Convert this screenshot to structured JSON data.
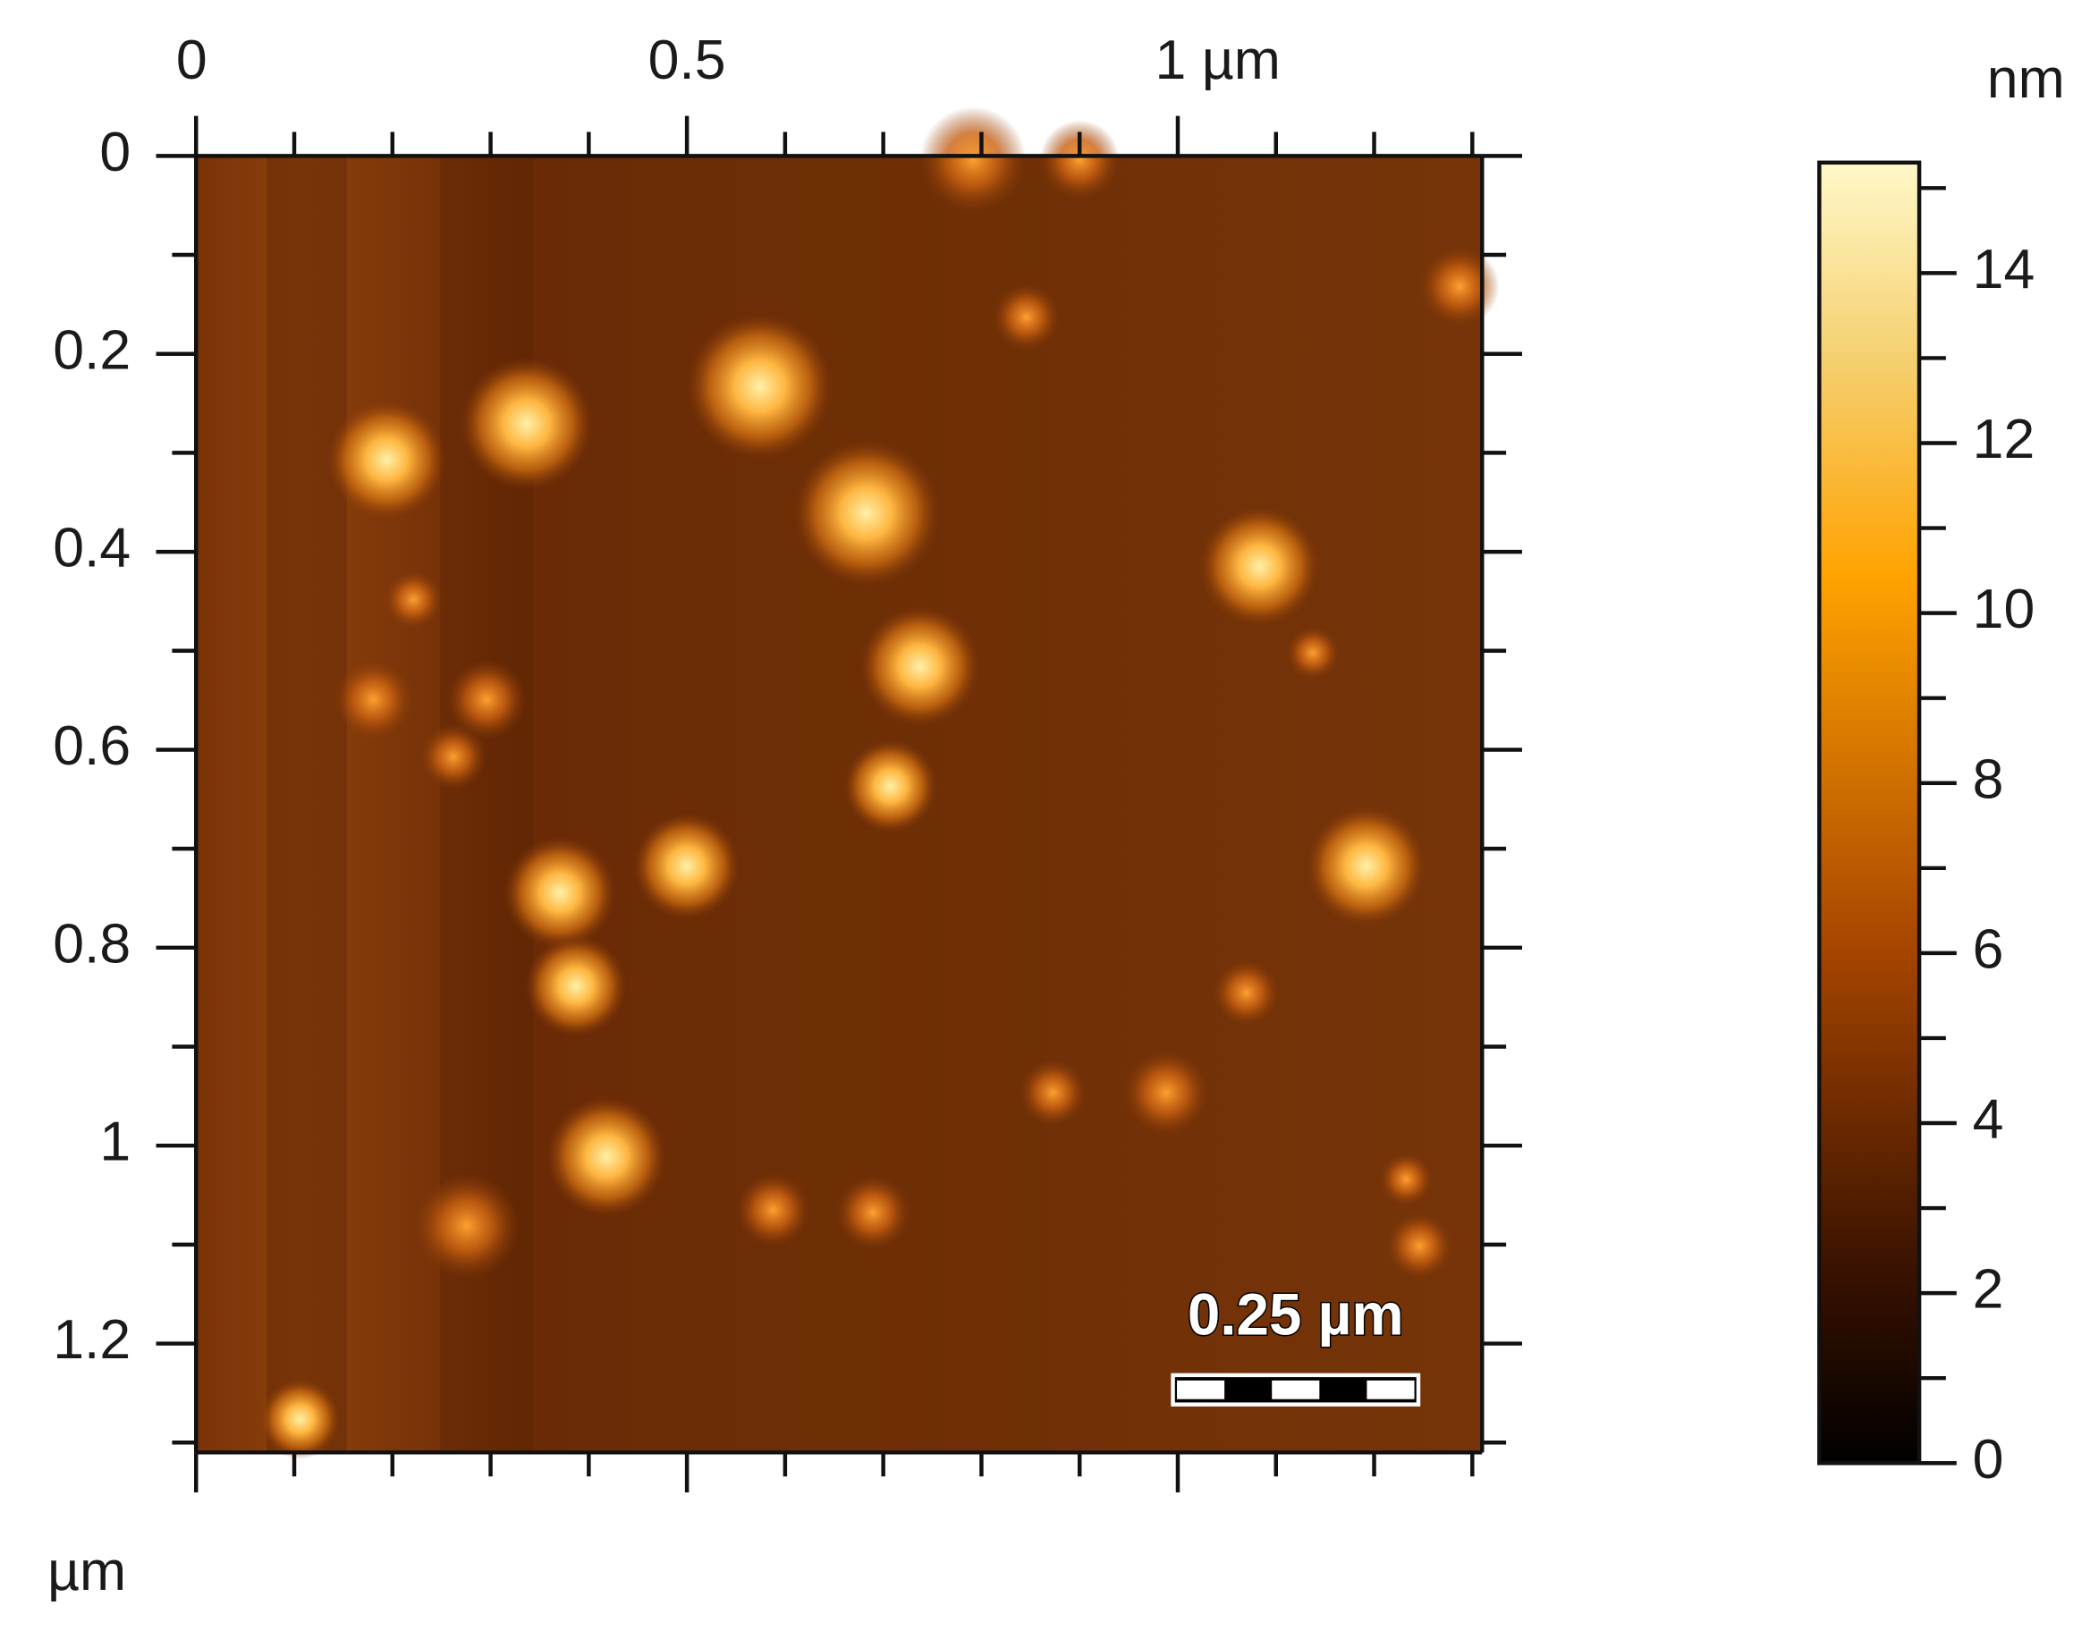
{
  "chart_data": {
    "type": "afm-image",
    "x_unit": "µm",
    "xlim": [
      0,
      1.31
    ],
    "xticks": [
      0,
      0.5,
      {
        "value": 1,
        "label": "1 µm"
      }
    ],
    "xminorticks": [
      0.1,
      0.2,
      0.3,
      0.4,
      0.6,
      0.7,
      0.8,
      0.9,
      1.1,
      1.2,
      1.3
    ],
    "ylim": [
      0,
      1.31
    ],
    "yticks": [
      0,
      0.2,
      0.4,
      0.6,
      0.8,
      1,
      1.2
    ],
    "yminorticks": [
      0.1,
      0.3,
      0.5,
      0.7,
      0.9,
      1.1,
      1.3
    ],
    "colorbar": {
      "label": "nm",
      "lim": [
        0,
        15.3
      ],
      "ticks": [
        0,
        2,
        4,
        6,
        8,
        10,
        12,
        14
      ],
      "minorticks": [
        1,
        3,
        5,
        7,
        9,
        11,
        13,
        15
      ]
    },
    "scale_bar": {
      "value": 0.25,
      "label": "0.25 µm"
    }
  }
}
